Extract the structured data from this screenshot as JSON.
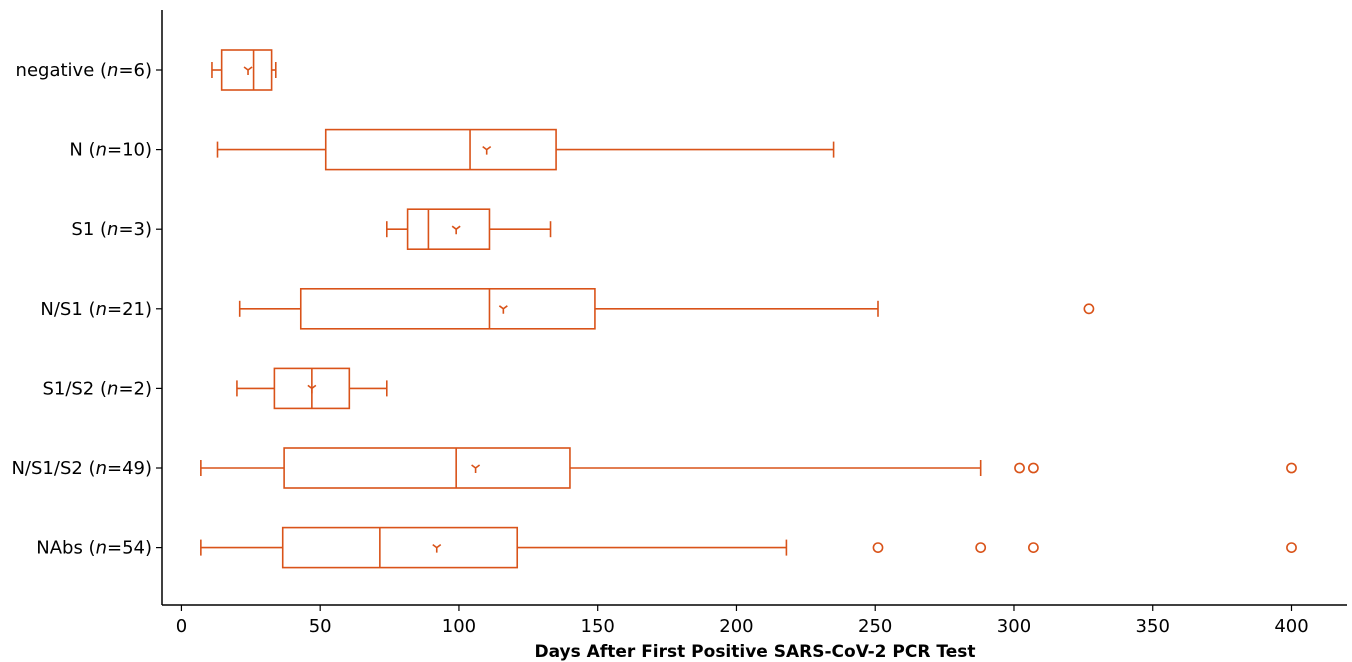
{
  "chart_data": {
    "type": "boxplot",
    "orientation": "horizontal",
    "title": "",
    "xlabel": "Days After First Positive SARS-CoV-2 PCR Test",
    "ylabel": "",
    "xlim": [
      -7,
      420
    ],
    "xticks": [
      0,
      50,
      100,
      150,
      200,
      250,
      300,
      350,
      400
    ],
    "grid": false,
    "legend": "none",
    "color": "#d95319",
    "categories": [
      {
        "name": "negative",
        "n": "6"
      },
      {
        "name": "N",
        "n": "10"
      },
      {
        "name": "S1",
        "n": "3"
      },
      {
        "name": "N/S1",
        "n": "21"
      },
      {
        "name": "S1/S2",
        "n": "2"
      },
      {
        "name": "N/S1/S2",
        "n": "49"
      },
      {
        "name": "NAbs",
        "n": "54"
      }
    ],
    "boxes": [
      {
        "whisker_low": 11,
        "q1": 14.5,
        "median": 26,
        "q3": 32.5,
        "whisker_high": 34,
        "mean": 24,
        "outliers": []
      },
      {
        "whisker_low": 13,
        "q1": 52,
        "median": 104,
        "q3": 135,
        "whisker_high": 235,
        "mean": 110,
        "outliers": []
      },
      {
        "whisker_low": 74,
        "q1": 81.5,
        "median": 89,
        "q3": 111,
        "whisker_high": 133,
        "mean": 99,
        "outliers": []
      },
      {
        "whisker_low": 21,
        "q1": 43,
        "median": 111,
        "q3": 149,
        "whisker_high": 251,
        "mean": 116,
        "outliers": [
          327
        ]
      },
      {
        "whisker_low": 20,
        "q1": 33.5,
        "median": 47,
        "q3": 60.5,
        "whisker_high": 74,
        "mean": 47,
        "outliers": []
      },
      {
        "whisker_low": 7,
        "q1": 37,
        "median": 99,
        "q3": 140,
        "whisker_high": 288,
        "mean": 106,
        "outliers": [
          302,
          307,
          400
        ]
      },
      {
        "whisker_low": 7,
        "q1": 36.5,
        "median": 71.5,
        "q3": 121,
        "whisker_high": 218,
        "mean": 92,
        "outliers": [
          251,
          288,
          307,
          400
        ]
      }
    ]
  }
}
